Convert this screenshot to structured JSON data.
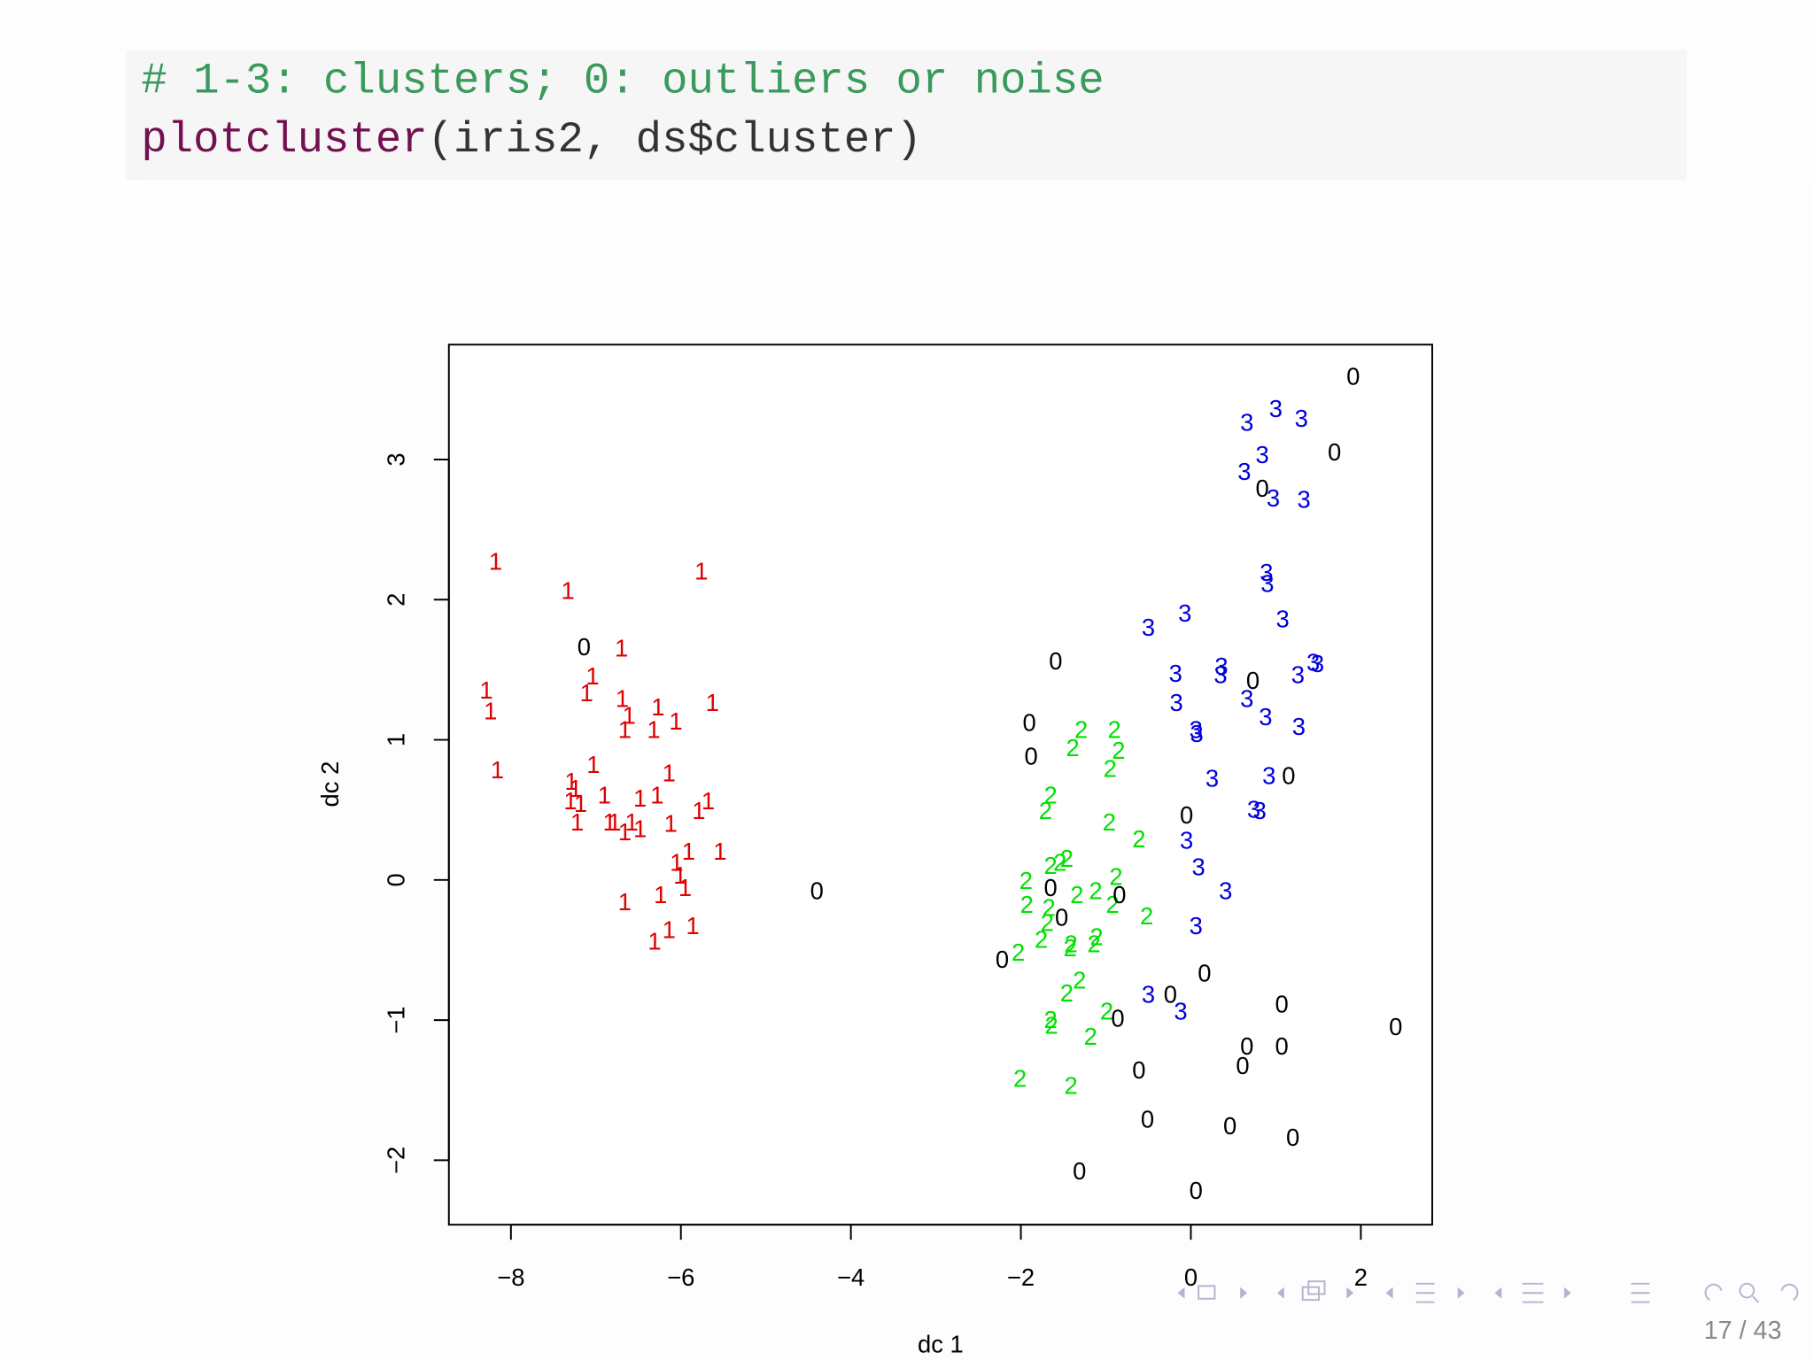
{
  "code": {
    "comment": "# 1-3: clusters; 0: outliers or noise",
    "function": "plotcluster",
    "args": "(iris2, ds$cluster)"
  },
  "footer": {
    "page": "17 / 43"
  },
  "chart_data": {
    "type": "scatter",
    "x_label": "dc 1",
    "y_label": "dc 2",
    "xlim": [
      -8.73,
      2.84
    ],
    "ylim": [
      -2.46,
      3.82
    ],
    "xticks": [
      {
        "value": -8,
        "label": "−8"
      },
      {
        "value": -6,
        "label": "−6"
      },
      {
        "value": -4,
        "label": "−4"
      },
      {
        "value": -2,
        "label": "−2"
      },
      0,
      2
    ],
    "yticks": [
      {
        "value": -2,
        "label": "−2"
      },
      {
        "value": -1,
        "label": "−1"
      },
      0,
      1,
      2,
      3
    ],
    "grid": false,
    "series": [
      {
        "name": "1",
        "color": "#e00000",
        "x": [
          -8.18,
          -7.33,
          -5.76,
          -6.7,
          -7.04,
          -7.11,
          -8.29,
          -8.24,
          -6.69,
          -6.27,
          -6.61,
          -5.63,
          -6.66,
          -6.32,
          -6.06,
          -8.16,
          -7.03,
          -6.14,
          -7.29,
          -7.24,
          -7.3,
          -7.18,
          -6.9,
          -6.48,
          -6.28,
          -5.68,
          -5.79,
          -7.22,
          -6.84,
          -6.78,
          -6.66,
          -6.58,
          -6.48,
          -6.12,
          -5.91,
          -6.05,
          -6.01,
          -5.54,
          -5.95,
          -6.66,
          -6.24,
          -6.31,
          -6.14,
          -5.86
        ],
        "y": [
          2.26,
          2.05,
          2.19,
          1.64,
          1.44,
          1.32,
          1.34,
          1.19,
          1.28,
          1.22,
          1.16,
          1.25,
          1.06,
          1.06,
          1.12,
          0.77,
          0.81,
          0.75,
          0.69,
          0.64,
          0.55,
          0.53,
          0.59,
          0.57,
          0.59,
          0.55,
          0.48,
          0.4,
          0.4,
          0.4,
          0.33,
          0.4,
          0.35,
          0.39,
          0.19,
          0.11,
          0.02,
          0.19,
          -0.07,
          -0.17,
          -0.12,
          -0.45,
          -0.37,
          -0.34
        ]
      },
      {
        "name": "2",
        "color": "#00e000",
        "x": [
          -1.29,
          -0.9,
          -1.39,
          -0.85,
          -0.95,
          -1.65,
          -1.71,
          -0.96,
          -0.61,
          -1.46,
          -1.65,
          -1.54,
          -0.88,
          -1.94,
          -1.12,
          -1.34,
          -0.92,
          -1.93,
          -1.67,
          -0.52,
          -1.69,
          -2.03,
          -1.76,
          -1.41,
          -1.11,
          -1.42,
          -1.14,
          -1.31,
          -1.46,
          -0.99,
          -1.65,
          -1.64,
          -1.18,
          -2.01,
          -1.41
        ],
        "y": [
          1.06,
          1.06,
          0.93,
          0.91,
          0.78,
          0.59,
          0.48,
          0.4,
          0.28,
          0.14,
          0.09,
          0.11,
          0.01,
          -0.02,
          -0.09,
          -0.12,
          -0.19,
          -0.19,
          -0.21,
          -0.27,
          -0.32,
          -0.53,
          -0.44,
          -0.47,
          -0.42,
          -0.5,
          -0.47,
          -0.73,
          -0.82,
          -0.95,
          -1.01,
          -1.05,
          -1.13,
          -1.43,
          -1.48
        ]
      },
      {
        "name": "3",
        "color": "#0000dd",
        "x": [
          0.66,
          1.0,
          1.3,
          0.84,
          0.63,
          0.97,
          1.33,
          0.89,
          0.9,
          1.08,
          -0.5,
          -0.07,
          -0.18,
          0.36,
          0.35,
          1.44,
          1.49,
          1.26,
          -0.17,
          0.66,
          0.88,
          1.27,
          0.06,
          0.07,
          0.25,
          0.92,
          0.74,
          0.81,
          -0.05,
          0.09,
          0.41,
          0.06,
          -0.5,
          -0.12
        ],
        "y": [
          3.25,
          3.35,
          3.28,
          3.02,
          2.9,
          2.71,
          2.7,
          2.18,
          2.1,
          1.85,
          1.79,
          1.89,
          1.46,
          1.51,
          1.45,
          1.54,
          1.53,
          1.45,
          1.25,
          1.28,
          1.15,
          1.08,
          1.06,
          1.03,
          0.71,
          0.73,
          0.49,
          0.48,
          0.27,
          0.08,
          -0.09,
          -0.34,
          -0.83,
          -0.95
        ]
      },
      {
        "name": "0",
        "color": "#000000",
        "x": [
          1.91,
          1.69,
          0.84,
          -7.14,
          -1.59,
          0.73,
          -1.9,
          -1.88,
          1.15,
          -0.05,
          -4.4,
          -1.65,
          -0.84,
          -1.52,
          -2.22,
          0.16,
          -0.24,
          1.07,
          -0.86,
          2.41,
          0.66,
          1.07,
          0.61,
          -0.61,
          -0.51,
          0.46,
          1.2,
          -1.31,
          0.06
        ],
        "y": [
          3.58,
          3.04,
          2.78,
          1.65,
          1.55,
          1.41,
          1.11,
          0.87,
          0.73,
          0.45,
          -0.09,
          -0.07,
          -0.12,
          -0.28,
          -0.58,
          -0.68,
          -0.83,
          -0.9,
          -1.0,
          -1.06,
          -1.2,
          -1.2,
          -1.34,
          -1.37,
          -1.72,
          -1.77,
          -1.85,
          -2.09,
          -2.23
        ]
      }
    ]
  }
}
